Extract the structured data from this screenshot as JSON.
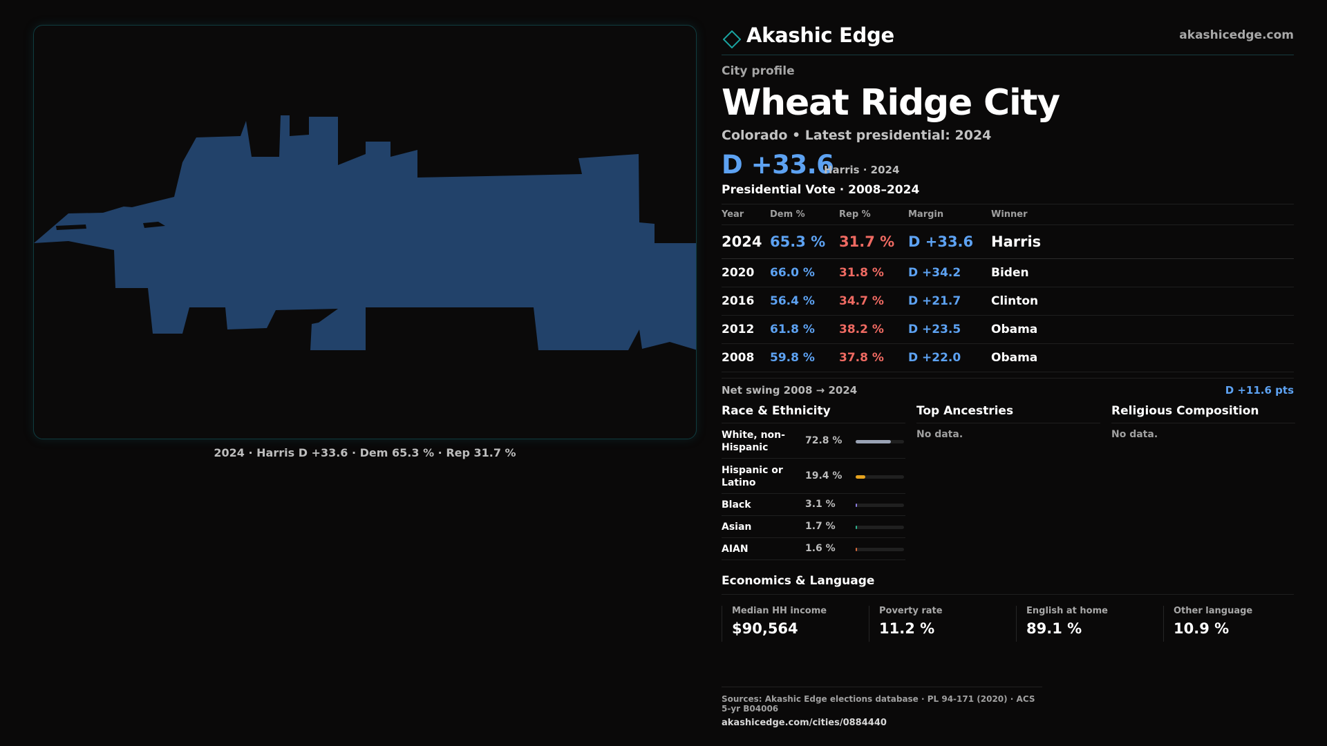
{
  "brand": {
    "name": "Akashic Edge",
    "url": "akashicedge.com",
    "logo_icon": "diamond-outline-icon",
    "accent": "#1aa3a0"
  },
  "profile": {
    "kicker": "City profile",
    "title": "Wheat Ridge City",
    "subtitle": "Colorado • Latest presidential: 2024",
    "big_margin": "D +33.6",
    "margin_note": "Harris · 2024"
  },
  "map": {
    "caption": "2024 · Harris D +33.6 · Dem 65.3 % · Rep 31.7 %",
    "fill_color": "#22426a"
  },
  "votes": {
    "heading": "Presidential Vote · 2008–2024",
    "headers": [
      "Year",
      "Dem %",
      "Rep %",
      "Margin",
      "Winner"
    ],
    "rows": [
      {
        "year": "2024",
        "dem": "65.3 %",
        "rep": "31.7 %",
        "margin": "D +33.6",
        "winner": "Harris"
      },
      {
        "year": "2020",
        "dem": "66.0 %",
        "rep": "31.8 %",
        "margin": "D +34.2",
        "winner": "Biden"
      },
      {
        "year": "2016",
        "dem": "56.4 %",
        "rep": "34.7 %",
        "margin": "D +21.7",
        "winner": "Clinton"
      },
      {
        "year": "2012",
        "dem": "61.8 %",
        "rep": "38.2 %",
        "margin": "D +23.5",
        "winner": "Obama"
      },
      {
        "year": "2008",
        "dem": "59.8 %",
        "rep": "37.8 %",
        "margin": "D +22.0",
        "winner": "Obama"
      }
    ],
    "swing_label": "Net swing 2008 → 2024",
    "swing_value": "D +11.6 pts"
  },
  "race": {
    "heading": "Race & Ethnicity",
    "rows": [
      {
        "label": "White, non-Hispanic",
        "pct": "72.8 %",
        "share": 0.728,
        "color": "#9aa3b5"
      },
      {
        "label": "Hispanic or Latino",
        "pct": "19.4 %",
        "share": 0.194,
        "color": "#e6a31e"
      },
      {
        "label": "Black",
        "pct": "3.1 %",
        "share": 0.031,
        "color": "#8c7de0"
      },
      {
        "label": "Asian",
        "pct": "1.7 %",
        "share": 0.017,
        "color": "#2fb38f"
      },
      {
        "label": "AIAN",
        "pct": "1.6 %",
        "share": 0.016,
        "color": "#d96a3c"
      }
    ]
  },
  "ancestries": {
    "heading": "Top Ancestries",
    "empty": "No data."
  },
  "religion": {
    "heading": "Religious Composition",
    "empty": "No data."
  },
  "economics": {
    "heading": "Economics & Language",
    "cells": [
      {
        "label": "Median HH income",
        "value": "$90,564"
      },
      {
        "label": "Poverty rate",
        "value": "11.2 %"
      },
      {
        "label": "English at home",
        "value": "89.1 %"
      },
      {
        "label": "Other language",
        "value": "10.9 %"
      }
    ]
  },
  "sources": {
    "text": "Sources: Akashic Edge elections database · PL 94-171 (2020) · ACS 5-yr B04006",
    "url": "akashicedge.com/cities/0884440"
  }
}
